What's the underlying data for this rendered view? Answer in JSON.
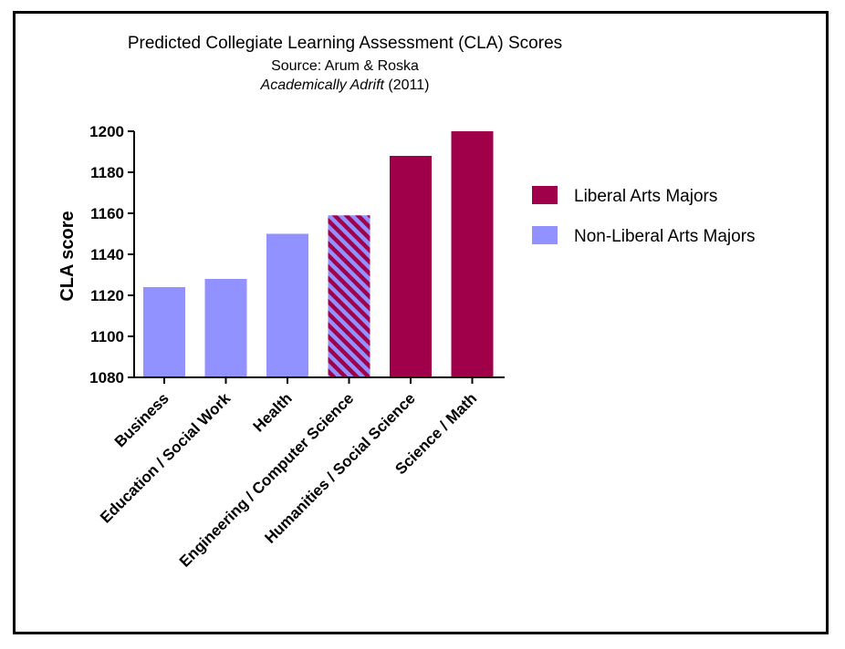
{
  "chart_data": {
    "type": "bar",
    "title": "Predicted Collegiate Learning Assessment (CLA) Scores",
    "subtitle_source": "Source:  Arum & Roska",
    "subtitle_book": "Academically Adrift",
    "subtitle_year": " (2011)",
    "ylabel": "CLA score",
    "xlabel": "",
    "ylim": [
      1080,
      1200
    ],
    "yticks": [
      1080,
      1100,
      1120,
      1140,
      1160,
      1180,
      1200
    ],
    "categories": [
      "Business",
      "Education / Social Work",
      "Health",
      "Engineering / Computer Science",
      "Humanities / Social Science",
      "Science / Math"
    ],
    "values": [
      1124,
      1128,
      1150,
      1159,
      1188,
      1200
    ],
    "groups": [
      "non-liberal",
      "non-liberal",
      "non-liberal",
      "both",
      "liberal",
      "liberal"
    ],
    "legend": [
      {
        "key": "liberal",
        "label": "Liberal Arts Majors",
        "color": "#a0004a"
      },
      {
        "key": "non-liberal",
        "label": "Non-Liberal Arts Majors",
        "color": "#9191ff"
      }
    ],
    "legend_position": "right",
    "grid": false
  }
}
